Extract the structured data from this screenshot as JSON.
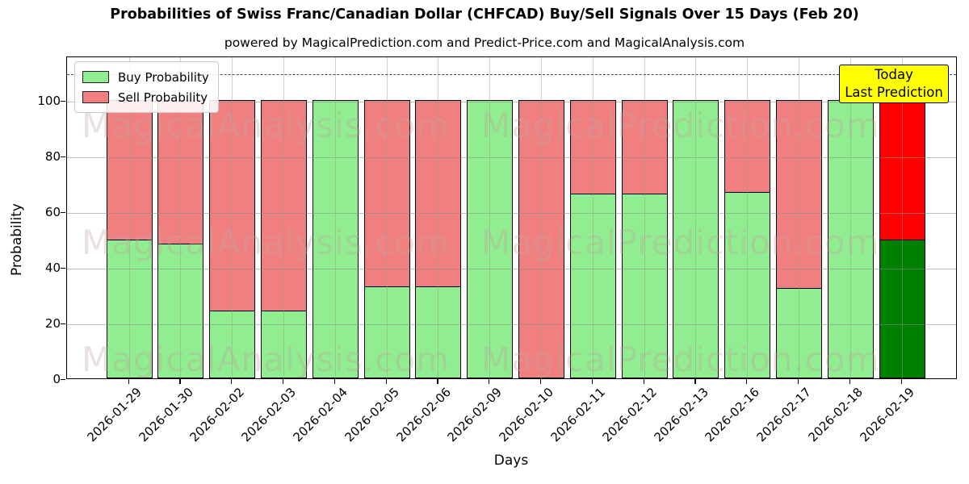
{
  "chart_data": {
    "type": "bar",
    "stacked": true,
    "title": "Probabilities of Swiss Franc/Canadian Dollar (CHFCAD) Buy/Sell Signals Over 15 Days (Feb 20)",
    "subtitle": "powered by MagicalPrediction.com and Predict-Price.com and MagicalAnalysis.com",
    "xlabel": "Days",
    "ylabel": "Probability",
    "categories": [
      "2026-01-29",
      "2026-01-30",
      "2026-02-02",
      "2026-02-03",
      "2026-02-04",
      "2026-02-05",
      "2026-02-06",
      "2026-02-09",
      "2026-02-10",
      "2026-02-11",
      "2026-02-12",
      "2026-02-13",
      "2026-02-16",
      "2026-02-17",
      "2026-02-18",
      "2026-02-19"
    ],
    "series": [
      {
        "name": "Buy Probability",
        "color": "#90EE90",
        "values": [
          50,
          48.5,
          24.5,
          24.5,
          100,
          33,
          33,
          100,
          0,
          66.5,
          66.5,
          100,
          67,
          32.5,
          100,
          50
        ]
      },
      {
        "name": "Sell Probability",
        "color": "#F08080",
        "values": [
          50,
          51.5,
          75.5,
          75.5,
          0,
          67,
          67,
          0,
          100,
          33.5,
          33.5,
          0,
          33,
          67.5,
          0,
          50
        ]
      }
    ],
    "today_bar_colors": {
      "buy": "#008000",
      "sell": "#FF0000"
    },
    "annotation": {
      "line1": "Today",
      "line2": "Last Prediction",
      "bg_color": "#FFFF00"
    },
    "ylim": [
      0,
      116
    ],
    "yticks": [
      0,
      20,
      40,
      60,
      80,
      100
    ],
    "dashed_line_y": 110,
    "grid": true,
    "legend_position": "upper-left",
    "watermarks": {
      "left_text": "MagicalAnalysis.com",
      "right_text": "MagicalPrediction.com",
      "rows": 3
    }
  }
}
